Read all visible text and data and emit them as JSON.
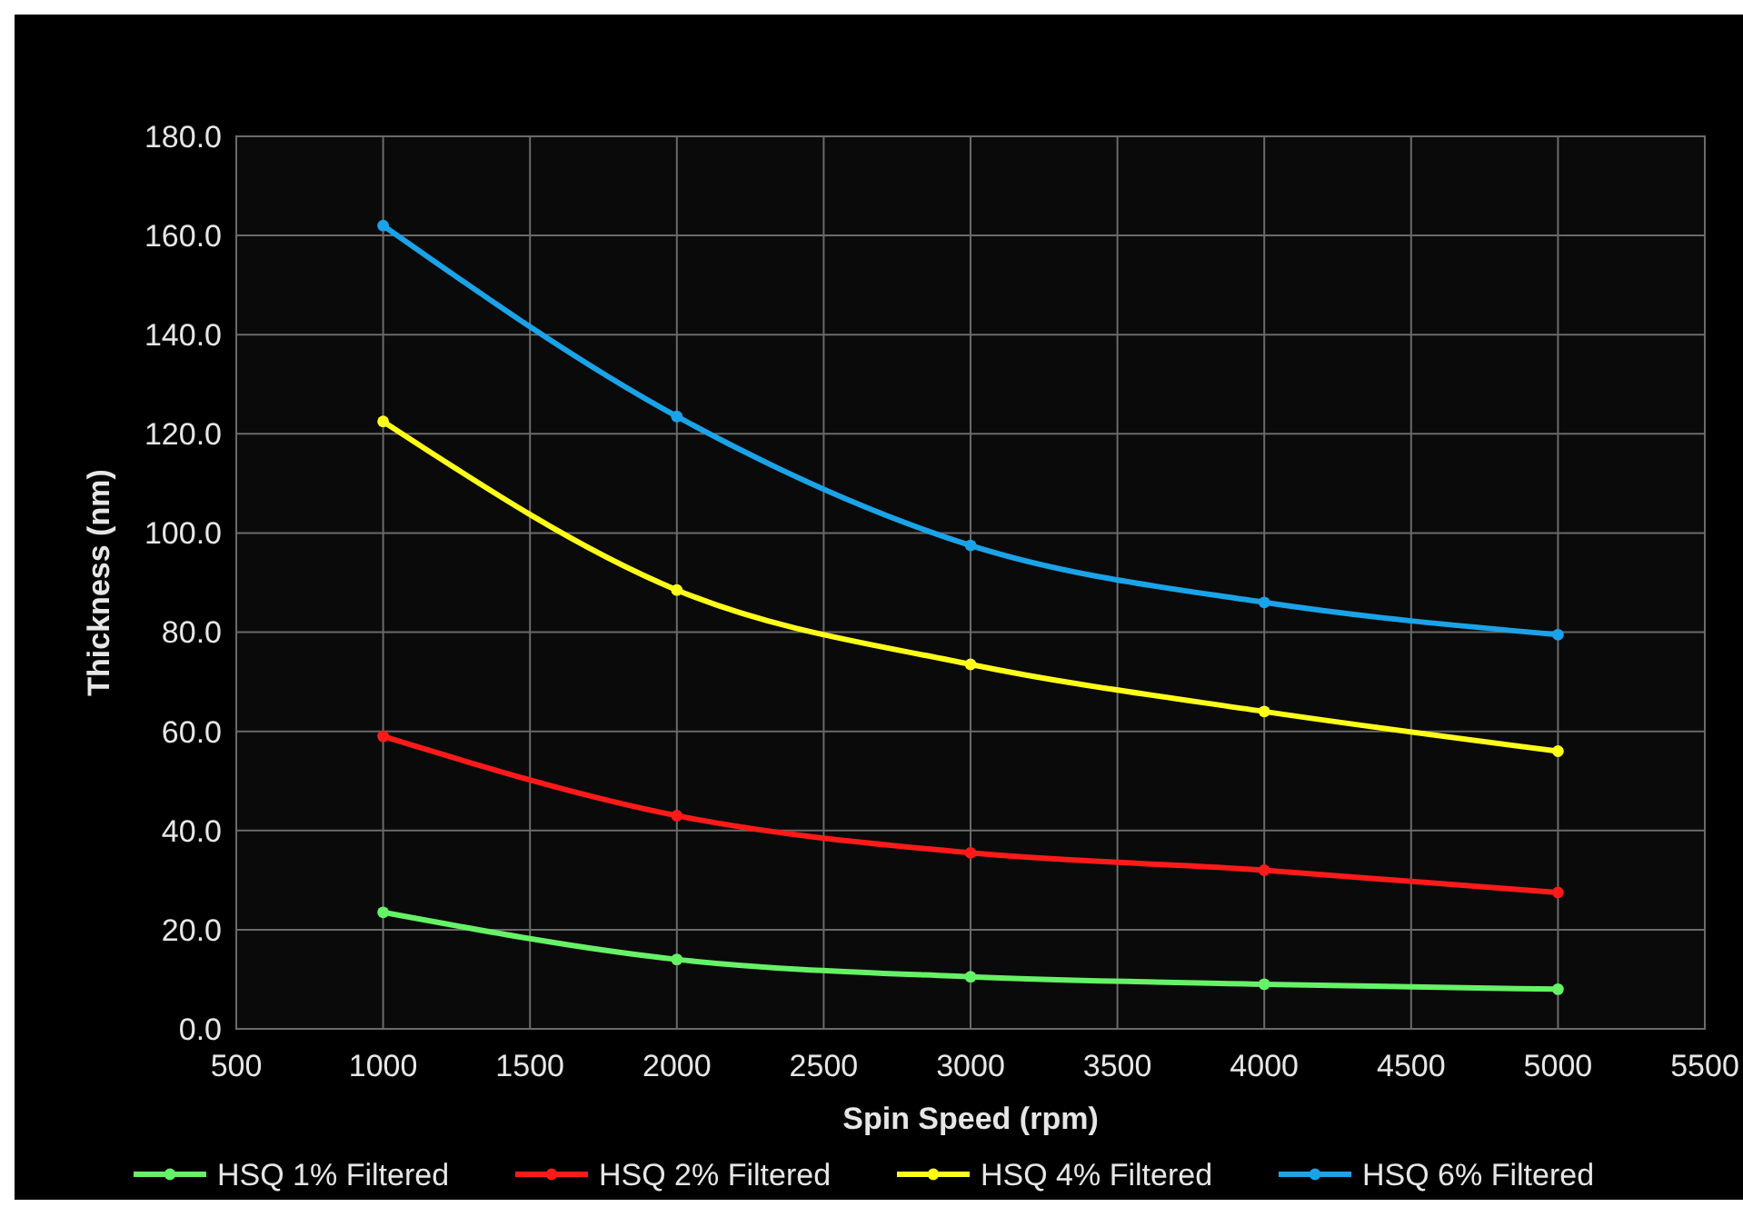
{
  "chart_data": {
    "type": "line",
    "xlabel": "Spin Speed (rpm)",
    "ylabel": "Thickness (nm)",
    "x": [
      1000,
      2000,
      3000,
      4000,
      5000
    ],
    "xlim": [
      500,
      5500
    ],
    "xticks": [
      500,
      1000,
      1500,
      2000,
      2500,
      3000,
      3500,
      4000,
      4500,
      5000,
      5500
    ],
    "ylim": [
      0,
      180
    ],
    "yticks": [
      {
        "value": 0,
        "label": "0.0"
      },
      {
        "value": 20,
        "label": "20.0"
      },
      {
        "value": 40,
        "label": "40.0"
      },
      {
        "value": 60,
        "label": "60.0"
      },
      {
        "value": 80,
        "label": "80.0"
      },
      {
        "value": 100,
        "label": "100.0"
      },
      {
        "value": 120,
        "label": "120.0"
      },
      {
        "value": 140,
        "label": "140.0"
      },
      {
        "value": 160,
        "label": "160.0"
      },
      {
        "value": 180,
        "label": "180.0"
      }
    ],
    "grid": true,
    "legend": "bottom",
    "marker": "circle",
    "line_style": "solid",
    "series": [
      {
        "name": "HSQ 1% Filtered",
        "color": "#66f266",
        "values": [
          23.5,
          14,
          10.5,
          9,
          8
        ]
      },
      {
        "name": "HSQ 2% Filtered",
        "color": "#ff1a1a",
        "values": [
          59,
          43,
          35.5,
          32,
          27.5
        ]
      },
      {
        "name": "HSQ 4% Filtered",
        "color": "#ffff1a",
        "values": [
          122.5,
          88.5,
          73.5,
          64,
          56
        ]
      },
      {
        "name": "HSQ 6% Filtered",
        "color": "#1aa3e8",
        "values": [
          162,
          123.5,
          97.5,
          86,
          79.5
        ]
      }
    ]
  }
}
